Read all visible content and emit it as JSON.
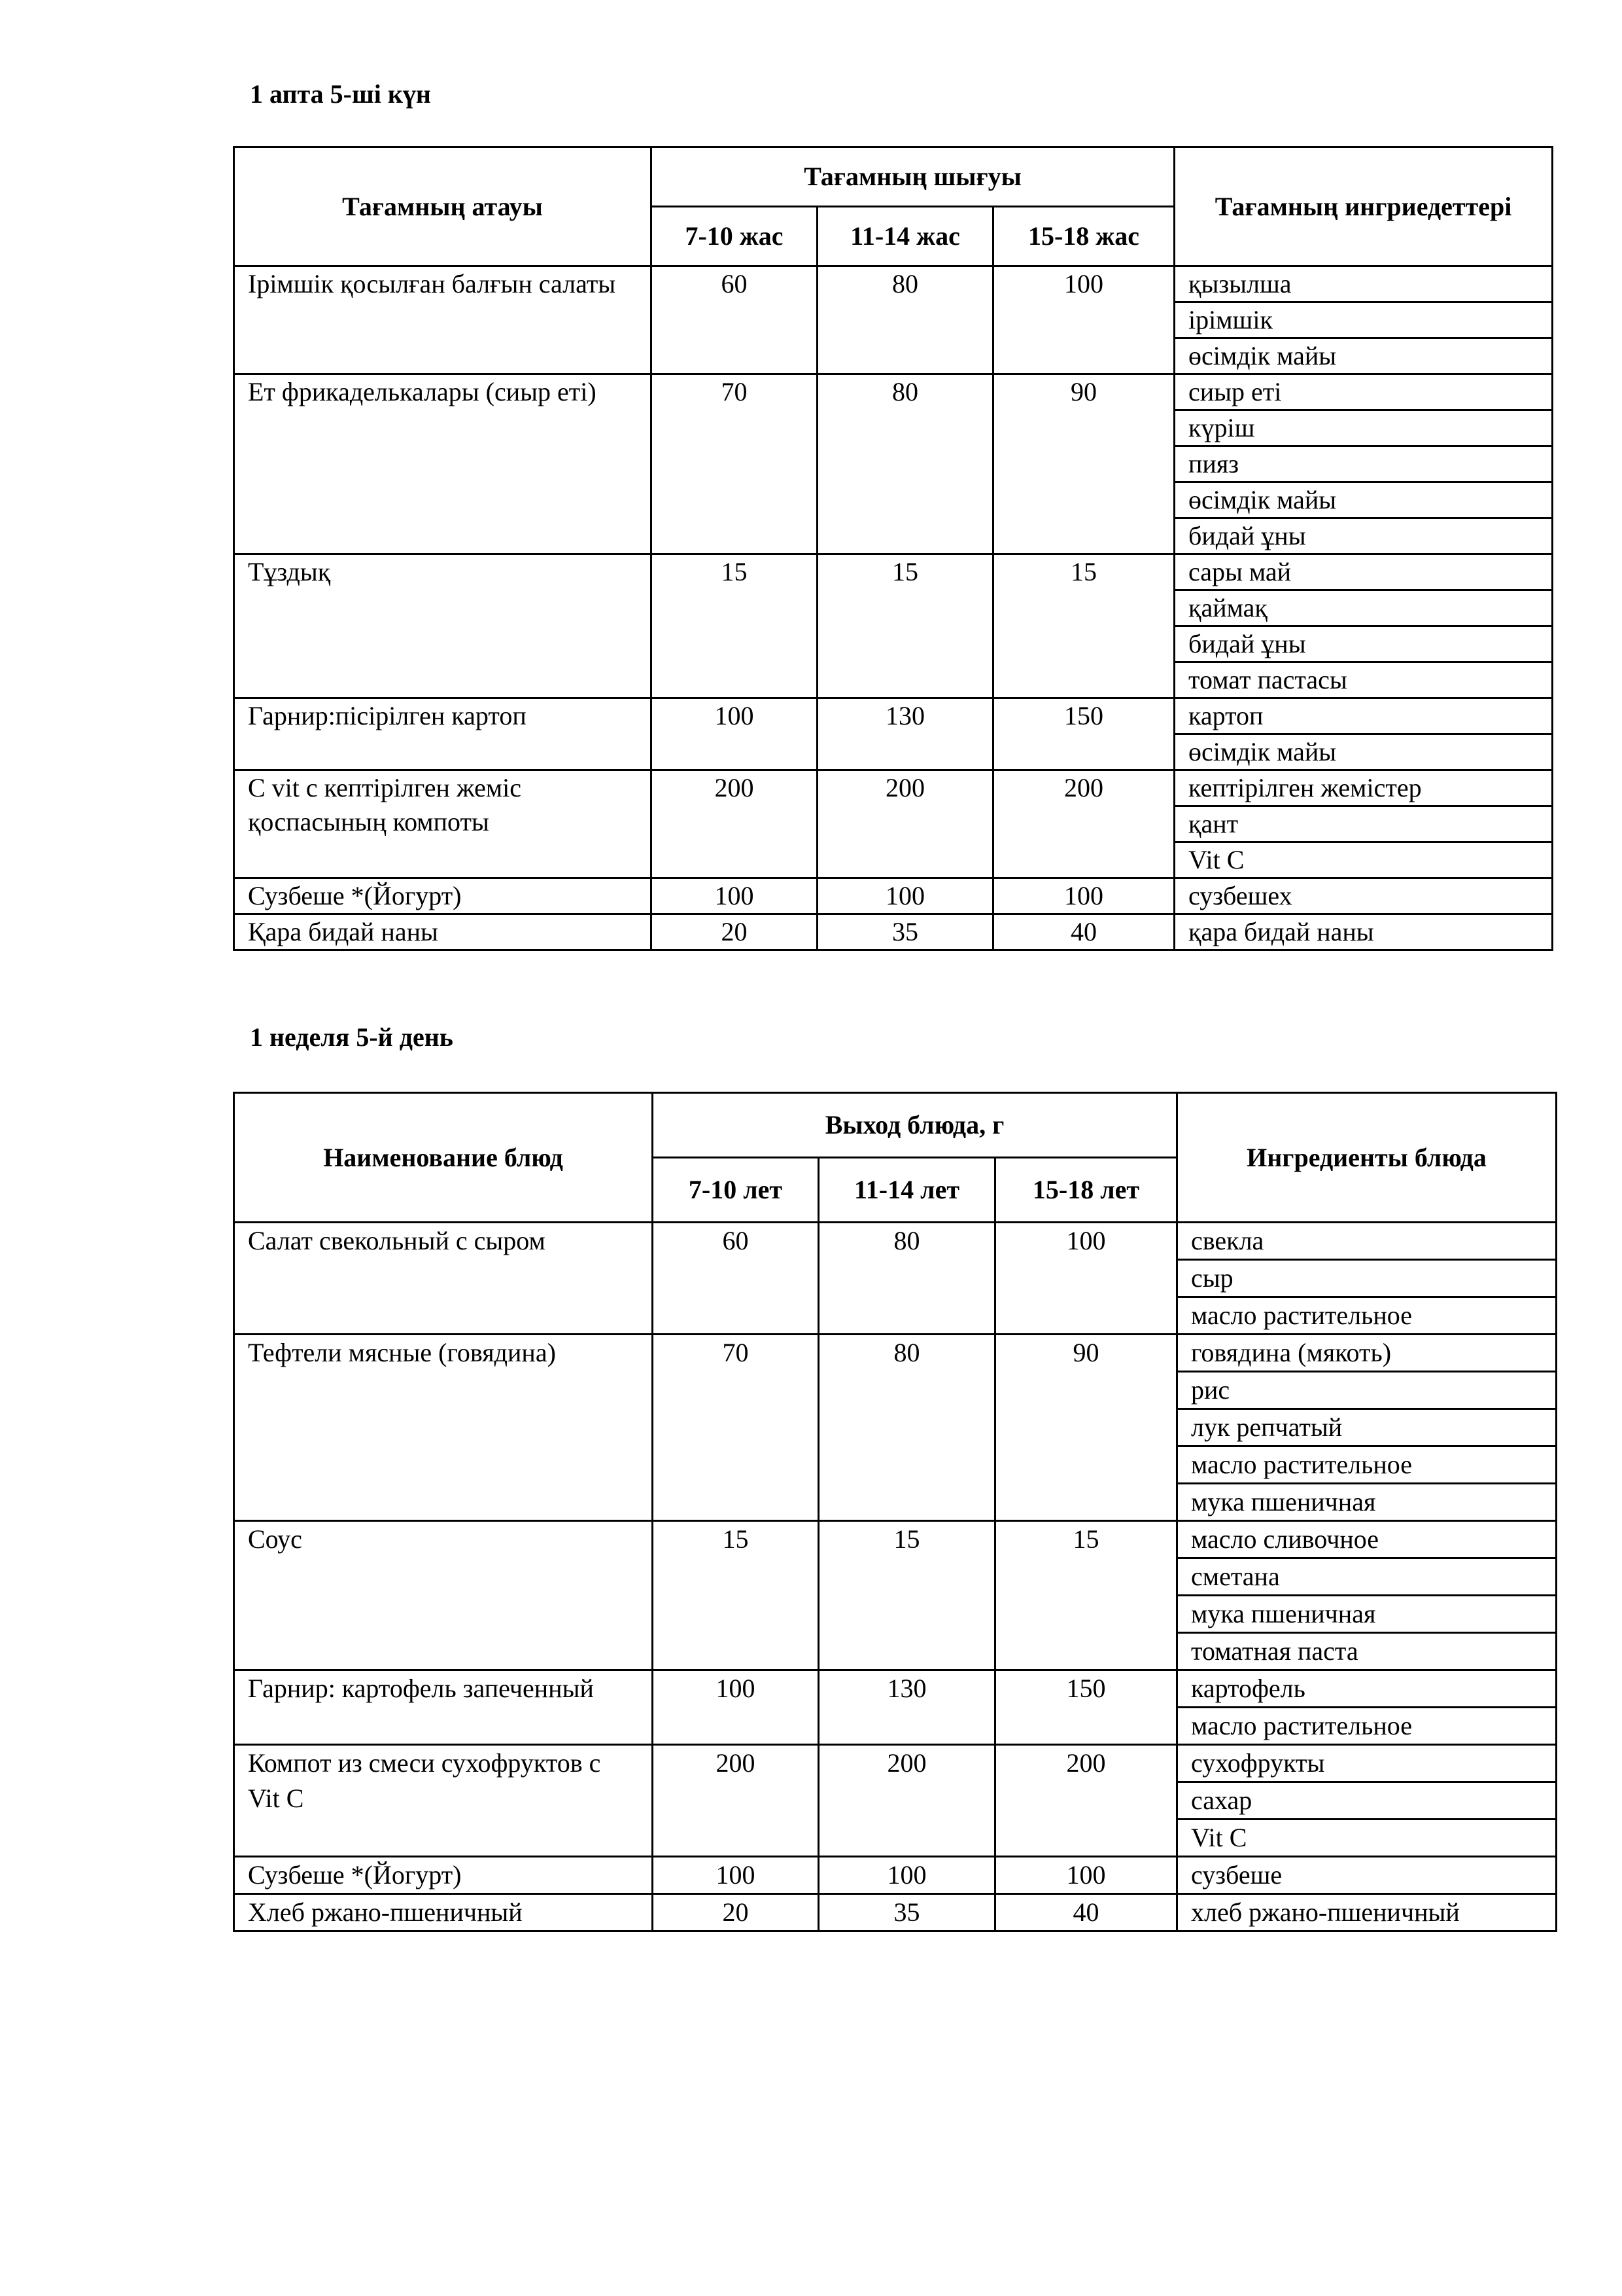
{
  "kazakh": {
    "title": "1 апта  5-ші күн",
    "headers": {
      "name": "Тағамның атауы",
      "yield": "Тағамның шығуы",
      "ages": [
        "7-10 жас",
        "11-14 жас",
        "15-18 жас"
      ],
      "ingredients": "Тағамның ингриедеттері"
    },
    "rows": [
      {
        "name": "Ірімшік қосылған балғын салаты",
        "values": [
          "60",
          "80",
          "100"
        ],
        "ingredients": [
          "қызылша",
          "ірімшік",
          "өсімдік майы"
        ]
      },
      {
        "name": "Ет фрикаделькалары (сиыр еті)",
        "values": [
          "70",
          "80",
          "90"
        ],
        "ingredients": [
          "сиыр еті",
          "күріш",
          "пияз",
          "өсімдік майы",
          "бидай ұны"
        ]
      },
      {
        "name": "Тұздық",
        "values": [
          "15",
          "15",
          "15"
        ],
        "ingredients": [
          "сары май",
          "қаймақ",
          "бидай ұны",
          "томат пастасы"
        ]
      },
      {
        "name": "Гарнир:пісірілген картоп",
        "values": [
          "100",
          "130",
          "150"
        ],
        "ingredients": [
          "картоп",
          "өсімдік майы"
        ]
      },
      {
        "name": "C vit c кептірілген жеміс қоспасының компоты",
        "values": [
          "200",
          "200",
          "200"
        ],
        "ingredients": [
          "кептірілген жемістер",
          "қант",
          "Vit C"
        ]
      },
      {
        "name": "Сузбеше *(Йогурт)",
        "values": [
          "100",
          "100",
          "100"
        ],
        "ingredients": [
          "сузбешех"
        ]
      },
      {
        "name": "Қара бидай наны",
        "values": [
          "20",
          "35",
          "40"
        ],
        "ingredients": [
          "қара бидай наны"
        ]
      }
    ]
  },
  "russian": {
    "title": "1 неделя 5-й день",
    "headers": {
      "name": "Наименование блюд",
      "yield": "Выход блюда, г",
      "ages": [
        "7-10 лет",
        "11-14 лет",
        "15-18 лет"
      ],
      "ingredients": "Ингредиенты блюда"
    },
    "rows": [
      {
        "name": "Салат свекольный с сыром",
        "values": [
          "60",
          "80",
          "100"
        ],
        "ingredients": [
          "свекла",
          "сыр",
          "масло растительное"
        ]
      },
      {
        "name": "Тефтели мясные (говядина)",
        "values": [
          "70",
          "80",
          "90"
        ],
        "ingredients": [
          "говядина (мякоть)",
          "рис",
          "лук репчатый",
          "масло растительное",
          "мука пшеничная"
        ]
      },
      {
        "name": "Соус",
        "values": [
          "15",
          "15",
          "15"
        ],
        "ingredients": [
          "масло сливочное",
          "сметана",
          "мука пшеничная",
          "томатная паста"
        ]
      },
      {
        "name": "Гарнир:  картофель запеченный",
        "values": [
          "100",
          "130",
          "150"
        ],
        "ingredients": [
          "картофель",
          "масло растительное"
        ]
      },
      {
        "name": "Компот из смеси сухофруктов с Vit C",
        "values": [
          "200",
          "200",
          "200"
        ],
        "ingredients": [
          "сухофрукты",
          "сахар",
          "Vit C"
        ]
      },
      {
        "name": "Сузбеше *(Йогурт)",
        "values": [
          "100",
          "100",
          "100"
        ],
        "ingredients": [
          "сузбеше"
        ]
      },
      {
        "name": "Хлеб ржано-пшеничный",
        "values": [
          "20",
          "35",
          "40"
        ],
        "ingredients": [
          "хлеб ржано-пшеничный"
        ]
      }
    ]
  }
}
